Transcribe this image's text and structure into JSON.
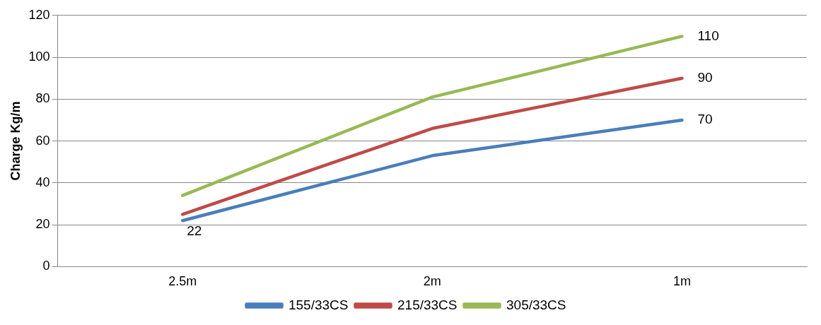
{
  "chart_data": {
    "type": "line",
    "ylabel": "Charge Kg/m",
    "categories": [
      "2.5m",
      "2m",
      "1m"
    ],
    "series": [
      {
        "name": "155/33CS",
        "color": "#4a7ebb",
        "values": [
          22,
          53,
          70
        ],
        "value_labels": [
          "22",
          null,
          "70"
        ]
      },
      {
        "name": "215/33CS",
        "color": "#be4b48",
        "values": [
          25,
          66,
          90
        ],
        "value_labels": [
          null,
          null,
          "90"
        ]
      },
      {
        "name": "305/33CS",
        "color": "#98b954",
        "values": [
          34,
          81,
          110
        ],
        "value_labels": [
          null,
          null,
          "110"
        ]
      }
    ],
    "ylim": [
      0,
      120
    ],
    "yticks": [
      0,
      20,
      40,
      60,
      80,
      100,
      120
    ],
    "grid": "y",
    "legend": "bottom",
    "marker": "none",
    "line_style": "solid"
  }
}
